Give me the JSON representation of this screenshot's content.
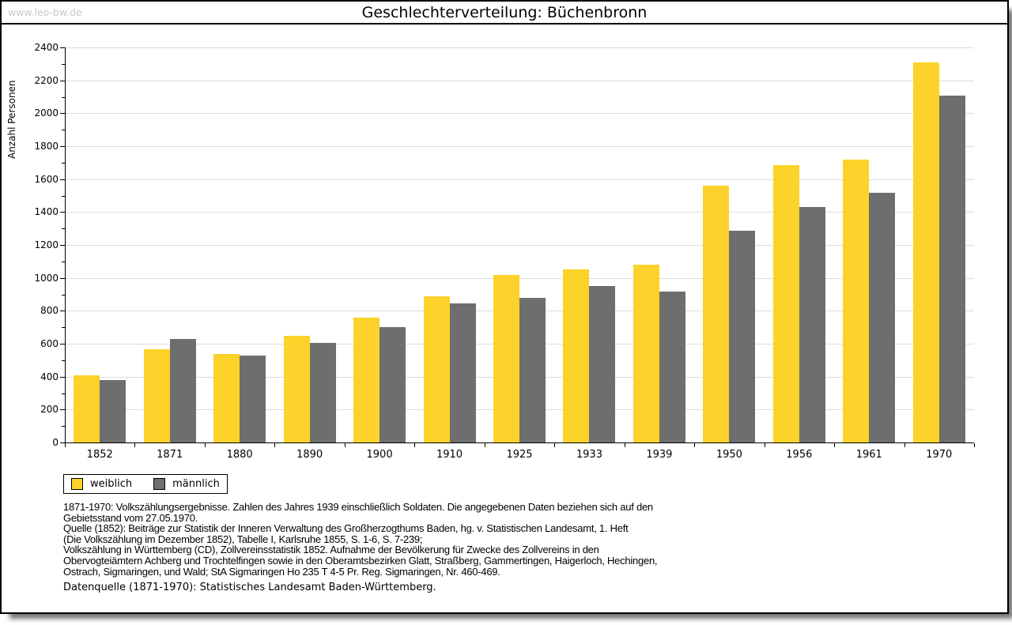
{
  "watermark": "www.leo-bw.de",
  "title": "Geschlechterverteilung: Büchenbronn",
  "chart_data": {
    "type": "bar",
    "title": "Geschlechterverteilung: Büchenbronn",
    "xlabel": "",
    "ylabel": "Anzahl Personen",
    "ylim": [
      0,
      2400
    ],
    "ytick_step": 200,
    "ytick_minor": 100,
    "grid": "horizontal",
    "legend_position": "bottom-left",
    "categories": [
      "1852",
      "1871",
      "1880",
      "1890",
      "1900",
      "1910",
      "1925",
      "1933",
      "1939",
      "1950",
      "1956",
      "1961",
      "1970"
    ],
    "series": [
      {
        "name": "weiblich",
        "color": "#fcd22b",
        "values": [
          410,
          565,
          540,
          650,
          760,
          890,
          1020,
          1050,
          1080,
          1560,
          1685,
          1720,
          2310
        ]
      },
      {
        "name": "männlich",
        "color": "#6e6e6e",
        "values": [
          380,
          630,
          530,
          605,
          700,
          845,
          880,
          950,
          915,
          1285,
          1430,
          1515,
          2105
        ]
      }
    ]
  },
  "legend": {
    "items": [
      {
        "label": "weiblich",
        "color": "#fcd22b"
      },
      {
        "label": "männlich",
        "color": "#6e6e6e"
      }
    ]
  },
  "footnotes": {
    "lines": [
      "1871-1970: Volkszählungsergebnisse. Zahlen des Jahres 1939 einschließlich Soldaten. Die angegebenen Daten beziehen sich auf den",
      "Gebietsstand vom 27.05.1970.",
      "Quelle (1852): Beiträge zur Statistik der Inneren Verwaltung des Großherzogthums Baden, hg. v. Statistischen Landesamt, 1. Heft",
      "(Die Volkszählung im Dezember 1852), Tabelle I, Karlsruhe 1855, S. 1-6, S. 7-239;",
      "Volkszählung in Württemberg (CD), Zollvereinsstatistik 1852. Aufnahme der Bevölkerung für Zwecke des Zollvereins in den",
      "Obervogteiämtern Achberg und Trochtelfingen sowie in den Oberamtsbezirken Glatt, Straßberg, Gammertingen, Haigerloch, Hechingen,",
      "Ostrach, Sigmaringen, und Wald; StA Sigmaringen Ho 235 T 4-5 Pr. Reg. Sigmaringen, Nr. 460-469."
    ],
    "datenquelle": "Datenquelle (1871-1970): Statistisches Landesamt Baden-Württemberg."
  },
  "colors": {
    "weiblich": "#fcd22b",
    "maennlich": "#6e6e6e",
    "gridline": "#dcdcdc",
    "watermark": "#c9c9c9",
    "border": "#000000"
  }
}
